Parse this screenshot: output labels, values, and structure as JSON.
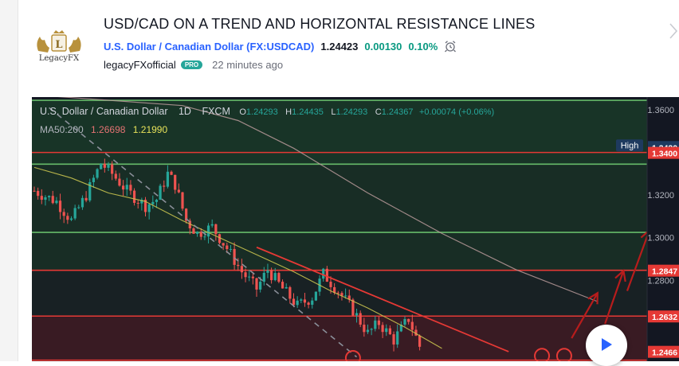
{
  "idea": {
    "title": "USD/CAD ON A TREND AND HORIZONTAL RESISTANCE LINES",
    "symbol_name": "U.S. Dollar / Canadian Dollar",
    "symbol_code": "(FX:USDCAD)",
    "price": "1.24423",
    "change": "0.00130",
    "change_pct": "0.10%",
    "author": "legacyFXofficial",
    "badge": "PRO",
    "published": "22 minutes ago",
    "logo_text": "LegacyFX",
    "logo_letter": "L"
  },
  "colors": {
    "chart_bg": "#131722",
    "up": "#26a69a",
    "down": "#ef5350",
    "resistance": "#e53935",
    "support": "#66bb6a",
    "ma50": "#c9c34f",
    "ma200": "#b89a9a",
    "trend_dash": "#8a8f99",
    "arrows": "#b71c1c",
    "accent": "#2962ff"
  },
  "chart_data": {
    "type": "candlestick",
    "header": {
      "name": "U.S. Dollar / Canadian Dollar",
      "interval": "1D",
      "exchange": "FXCM",
      "o_label": "O",
      "o": "1.24293",
      "h_label": "H",
      "h": "1.24435",
      "l_label": "L",
      "l": "1.24293",
      "c_label": "C",
      "c": "1.24367",
      "change": "+0.00074 (+0.06%)"
    },
    "ma_legend": {
      "label": "MA50:200",
      "ma50": "1.26698",
      "ma200": "1.21990"
    },
    "y_axis": {
      "min": 1.242,
      "max": 1.366,
      "ticks": [
        1.36,
        1.34,
        1.32,
        1.3,
        1.28
      ]
    },
    "price_labels": [
      {
        "label": "High",
        "value": 1.342,
        "text": "1.3420",
        "kind": "high"
      },
      {
        "label": "",
        "value": 1.34,
        "text": "1.3400",
        "kind": "resistance"
      },
      {
        "label": "",
        "value": 1.2847,
        "text": "1.2847",
        "kind": "resistance"
      },
      {
        "label": "",
        "value": 1.2632,
        "text": "1.2632",
        "kind": "resistance"
      },
      {
        "label": "",
        "value": 1.2466,
        "text": "1.2466",
        "kind": "resistance"
      }
    ],
    "horizontal_lines": [
      {
        "value": 1.3645,
        "kind": "support"
      },
      {
        "value": 1.34,
        "kind": "resistance"
      },
      {
        "value": 1.3345,
        "kind": "support"
      },
      {
        "value": 1.3025,
        "kind": "support"
      },
      {
        "value": 1.2847,
        "kind": "resistance"
      },
      {
        "value": 1.2632,
        "kind": "resistance"
      },
      {
        "value": 1.2425,
        "kind": "resistance"
      }
    ],
    "zones": [
      {
        "from": 1.3345,
        "to": 1.3645,
        "kind": "support"
      },
      {
        "from": 1.3025,
        "to": 1.3345,
        "kind": "support"
      },
      {
        "from": 1.2847,
        "to": 1.3025,
        "kind": "support"
      },
      {
        "from": 1.2632,
        "to": 1.2847,
        "kind": "neutral"
      },
      {
        "from": 1.242,
        "to": 1.2632,
        "kind": "resistance"
      }
    ],
    "bars_count": 105,
    "anchors": [
      [
        0,
        1.322
      ],
      [
        6,
        1.317
      ],
      [
        10,
        1.308
      ],
      [
        14,
        1.32
      ],
      [
        18,
        1.335
      ],
      [
        21,
        1.33
      ],
      [
        25,
        1.322
      ],
      [
        30,
        1.315
      ],
      [
        33,
        1.318
      ],
      [
        36,
        1.33
      ],
      [
        38,
        1.325
      ],
      [
        41,
        1.308
      ],
      [
        44,
        1.302
      ],
      [
        48,
        1.305
      ],
      [
        52,
        1.295
      ],
      [
        56,
        1.284
      ],
      [
        60,
        1.276
      ],
      [
        63,
        1.285
      ],
      [
        67,
        1.276
      ],
      [
        71,
        1.268
      ],
      [
        75,
        1.272
      ],
      [
        78,
        1.283
      ],
      [
        82,
        1.275
      ],
      [
        86,
        1.266
      ],
      [
        90,
        1.255
      ],
      [
        93,
        1.26
      ],
      [
        97,
        1.252
      ],
      [
        101,
        1.262
      ],
      [
        104,
        1.249
      ]
    ],
    "ma50": [
      [
        0,
        1.333
      ],
      [
        10,
        1.328
      ],
      [
        20,
        1.321
      ],
      [
        30,
        1.317
      ],
      [
        40,
        1.308
      ],
      [
        50,
        1.3
      ],
      [
        60,
        1.292
      ],
      [
        70,
        1.284
      ],
      [
        80,
        1.275
      ],
      [
        90,
        1.267
      ],
      [
        100,
        1.258
      ],
      [
        110,
        1.248
      ]
    ],
    "ma200": [
      [
        0,
        1.367
      ],
      [
        40,
        1.362
      ],
      [
        55,
        1.355
      ],
      [
        70,
        1.342
      ],
      [
        90,
        1.321
      ],
      [
        110,
        1.302
      ],
      [
        130,
        1.285
      ],
      [
        152,
        1.27
      ]
    ],
    "downtrend_dashed": [
      [
        4,
        1.361
      ],
      [
        87,
        1.244
      ]
    ],
    "resistance_trend": [
      [
        60,
        1.2955
      ],
      [
        128,
        1.2465
      ]
    ],
    "projection_arrows": [
      [
        [
          145,
          1.2528
        ],
        [
          152,
          1.274
        ]
      ],
      [
        [
          154,
          1.2595
        ],
        [
          159,
          1.2845
        ]
      ],
      [
        [
          160,
          1.275
        ],
        [
          166,
          1.3035
        ]
      ],
      [
        [
          166,
          1.288
        ],
        [
          174,
          1.3375
        ]
      ]
    ],
    "circles": [
      [
        86,
        1.2435
      ],
      [
        137,
        1.2445
      ],
      [
        143,
        1.2445
      ]
    ]
  }
}
